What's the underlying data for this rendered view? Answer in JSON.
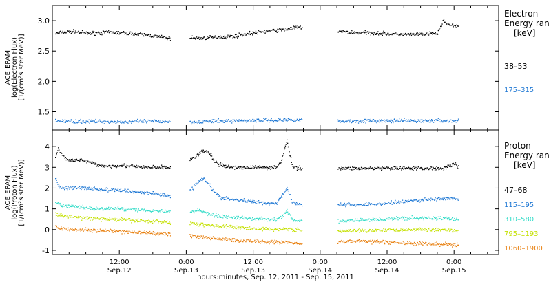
{
  "chart_data": [
    {
      "type": "scatter",
      "ylabel": [
        "ACE EPAM",
        "log(Electron Flux)",
        "[1/(cm²s ster MeV)]"
      ],
      "ylim": [
        1.2,
        3.25
      ],
      "y_ticks": [
        1.5,
        2.0,
        2.5,
        3.0
      ],
      "y_tick_labels": [
        "1.5",
        "2.0",
        "2.5",
        "3.0"
      ],
      "xlim_hours": [
        0,
        80
      ],
      "legend_title": [
        "Electron",
        "Energy ran",
        "[keV]"
      ],
      "gaps_hours": [
        [
          21.2,
          24.6
        ],
        [
          44.8,
          51.1
        ],
        [
          72.8,
          80
        ]
      ],
      "series": [
        {
          "name": "38–53",
          "color": "#000000",
          "values": [
            [
              0.5,
              2.79
            ],
            [
              2,
              2.81
            ],
            [
              4,
              2.82
            ],
            [
              6,
              2.79
            ],
            [
              8,
              2.8
            ],
            [
              10,
              2.81
            ],
            [
              12,
              2.8
            ],
            [
              14,
              2.79
            ],
            [
              16,
              2.77
            ],
            [
              18,
              2.75
            ],
            [
              20,
              2.72
            ],
            [
              21,
              2.71
            ],
            [
              24.8,
              2.72
            ],
            [
              26,
              2.71
            ],
            [
              28,
              2.72
            ],
            [
              30,
              2.73
            ],
            [
              32,
              2.74
            ],
            [
              34,
              2.77
            ],
            [
              36,
              2.8
            ],
            [
              38,
              2.82
            ],
            [
              40,
              2.84
            ],
            [
              42,
              2.86
            ],
            [
              43,
              2.88
            ],
            [
              44.5,
              2.89
            ],
            [
              51.3,
              2.82
            ],
            [
              53,
              2.81
            ],
            [
              55,
              2.8
            ],
            [
              57,
              2.8
            ],
            [
              59,
              2.79
            ],
            [
              61,
              2.78
            ],
            [
              63,
              2.77
            ],
            [
              65,
              2.77
            ],
            [
              67,
              2.78
            ],
            [
              69,
              2.79
            ],
            [
              70,
              3.0
            ],
            [
              71,
              2.93
            ],
            [
              72.6,
              2.9
            ]
          ]
        },
        {
          "name": "175–315",
          "color": "#1f78d4",
          "values": [
            [
              0.5,
              1.35
            ],
            [
              4,
              1.34
            ],
            [
              8,
              1.34
            ],
            [
              12,
              1.33
            ],
            [
              16,
              1.34
            ],
            [
              20,
              1.34
            ],
            [
              21,
              1.34
            ],
            [
              24.8,
              1.33
            ],
            [
              28,
              1.34
            ],
            [
              32,
              1.35
            ],
            [
              36,
              1.36
            ],
            [
              40,
              1.36
            ],
            [
              44.5,
              1.37
            ],
            [
              51.3,
              1.34
            ],
            [
              55,
              1.35
            ],
            [
              59,
              1.35
            ],
            [
              63,
              1.35
            ],
            [
              67,
              1.35
            ],
            [
              72.6,
              1.35
            ]
          ]
        }
      ]
    },
    {
      "type": "scatter",
      "ylabel": [
        "ACE EPAM",
        "log(Proton Flux)",
        "[1/(cm²s ster MeV)]"
      ],
      "ylim": [
        -1.2,
        4.8
      ],
      "y_ticks": [
        -1,
        0,
        1,
        2,
        3,
        4
      ],
      "y_tick_labels": [
        "-1",
        "0",
        "1",
        "2",
        "3",
        "4"
      ],
      "xlim_hours": [
        0,
        80
      ],
      "legend_title": [
        "Proton",
        "Energy ran",
        "[keV]"
      ],
      "gaps_hours": [
        [
          21.2,
          24.6
        ],
        [
          44.8,
          51.1
        ],
        [
          72.8,
          80
        ]
      ],
      "series": [
        {
          "name": "47–68",
          "color": "#000000",
          "values": [
            [
              0.5,
              3.5
            ],
            [
              1,
              3.9
            ],
            [
              2,
              3.5
            ],
            [
              3,
              3.3
            ],
            [
              4,
              3.4
            ],
            [
              6,
              3.3
            ],
            [
              8,
              3.1
            ],
            [
              10,
              3.05
            ],
            [
              12,
              3.1
            ],
            [
              14,
              3.05
            ],
            [
              16,
              3.0
            ],
            [
              18,
              3.0
            ],
            [
              20,
              3.0
            ],
            [
              21,
              2.98
            ],
            [
              24.8,
              3.4
            ],
            [
              26,
              3.6
            ],
            [
              27,
              3.8
            ],
            [
              28,
              3.7
            ],
            [
              29,
              3.3
            ],
            [
              30,
              3.1
            ],
            [
              32,
              3.0
            ],
            [
              34,
              3.0
            ],
            [
              36,
              3.0
            ],
            [
              38,
              3.0
            ],
            [
              40,
              3.0
            ],
            [
              41,
              3.3
            ],
            [
              42,
              4.3
            ],
            [
              43,
              3.0
            ],
            [
              44.5,
              2.98
            ],
            [
              51.3,
              2.95
            ],
            [
              55,
              2.95
            ],
            [
              59,
              2.95
            ],
            [
              63,
              2.95
            ],
            [
              67,
              2.95
            ],
            [
              70,
              2.95
            ],
            [
              72,
              3.2
            ],
            [
              72.6,
              3.0
            ]
          ]
        },
        {
          "name": "115–195",
          "color": "#1f78d4",
          "values": [
            [
              0.5,
              2.5
            ],
            [
              1,
              2.1
            ],
            [
              2,
              2.0
            ],
            [
              4,
              2.0
            ],
            [
              6,
              2.0
            ],
            [
              8,
              1.95
            ],
            [
              10,
              1.9
            ],
            [
              12,
              1.9
            ],
            [
              14,
              1.85
            ],
            [
              16,
              1.8
            ],
            [
              18,
              1.75
            ],
            [
              20,
              1.68
            ],
            [
              21,
              1.62
            ],
            [
              24.8,
              1.9
            ],
            [
              26,
              2.3
            ],
            [
              27,
              2.5
            ],
            [
              28,
              2.2
            ],
            [
              29,
              1.8
            ],
            [
              30,
              1.55
            ],
            [
              32,
              1.45
            ],
            [
              34,
              1.4
            ],
            [
              36,
              1.35
            ],
            [
              38,
              1.3
            ],
            [
              40,
              1.25
            ],
            [
              41,
              1.6
            ],
            [
              42,
              2.0
            ],
            [
              43,
              1.3
            ],
            [
              44.5,
              1.22
            ],
            [
              51.3,
              1.2
            ],
            [
              55,
              1.2
            ],
            [
              59,
              1.25
            ],
            [
              63,
              1.35
            ],
            [
              67,
              1.45
            ],
            [
              70,
              1.5
            ],
            [
              72.6,
              1.45
            ]
          ]
        },
        {
          "name": "310–580",
          "color": "#34dcc8",
          "values": [
            [
              0.5,
              1.25
            ],
            [
              2,
              1.15
            ],
            [
              4,
              1.1
            ],
            [
              6,
              1.05
            ],
            [
              8,
              1.0
            ],
            [
              10,
              1.0
            ],
            [
              12,
              1.0
            ],
            [
              14,
              0.98
            ],
            [
              16,
              0.95
            ],
            [
              18,
              0.92
            ],
            [
              20,
              0.88
            ],
            [
              21,
              0.85
            ],
            [
              24.8,
              0.85
            ],
            [
              26,
              0.95
            ],
            [
              28,
              0.75
            ],
            [
              30,
              0.65
            ],
            [
              32,
              0.6
            ],
            [
              34,
              0.55
            ],
            [
              36,
              0.52
            ],
            [
              38,
              0.5
            ],
            [
              40,
              0.48
            ],
            [
              41,
              0.6
            ],
            [
              42,
              0.9
            ],
            [
              43,
              0.45
            ],
            [
              44.5,
              0.42
            ],
            [
              51.3,
              0.4
            ],
            [
              55,
              0.45
            ],
            [
              59,
              0.5
            ],
            [
              63,
              0.55
            ],
            [
              67,
              0.55
            ],
            [
              70,
              0.55
            ],
            [
              72.6,
              0.5
            ]
          ]
        },
        {
          "name": "795–1193",
          "color": "#c4e000",
          "values": [
            [
              0.5,
              0.72
            ],
            [
              4,
              0.6
            ],
            [
              8,
              0.52
            ],
            [
              12,
              0.48
            ],
            [
              16,
              0.42
            ],
            [
              20,
              0.38
            ],
            [
              21,
              0.33
            ],
            [
              24.8,
              0.3
            ],
            [
              28,
              0.22
            ],
            [
              32,
              0.12
            ],
            [
              36,
              0.05
            ],
            [
              40,
              0.0
            ],
            [
              42,
              0.05
            ],
            [
              44.5,
              -0.05
            ],
            [
              51.3,
              -0.08
            ],
            [
              55,
              -0.05
            ],
            [
              59,
              -0.02
            ],
            [
              63,
              0.0
            ],
            [
              67,
              0.0
            ],
            [
              70,
              0.0
            ],
            [
              72.6,
              -0.05
            ]
          ]
        },
        {
          "name": "1060–1900",
          "color": "#e88010",
          "values": [
            [
              0.5,
              0.1
            ],
            [
              4,
              0.0
            ],
            [
              8,
              -0.05
            ],
            [
              12,
              -0.1
            ],
            [
              16,
              -0.15
            ],
            [
              20,
              -0.2
            ],
            [
              21,
              -0.22
            ],
            [
              24.8,
              -0.3
            ],
            [
              28,
              -0.4
            ],
            [
              32,
              -0.5
            ],
            [
              36,
              -0.55
            ],
            [
              40,
              -0.6
            ],
            [
              44.5,
              -0.65
            ],
            [
              51.3,
              -0.6
            ],
            [
              55,
              -0.55
            ],
            [
              59,
              -0.6
            ],
            [
              63,
              -0.65
            ],
            [
              67,
              -0.7
            ],
            [
              70,
              -0.7
            ],
            [
              72.6,
              -0.75
            ]
          ]
        }
      ]
    }
  ],
  "x_axis": {
    "ticks": [
      {
        "hours": 12,
        "time": "12:00",
        "date": "Sep.12"
      },
      {
        "hours": 24,
        "time": "0:00",
        "date": "Sep.13"
      },
      {
        "hours": 36,
        "time": "12:00",
        "date": "Sep.13"
      },
      {
        "hours": 48,
        "time": "0:00",
        "date": "Sep.14"
      },
      {
        "hours": 60,
        "time": "12:00",
        "date": "Sep.14"
      },
      {
        "hours": 72,
        "time": "0:00",
        "date": "Sep.15"
      }
    ],
    "label": "hours:minutes, Sep. 12, 2011 - Sep. 15, 2011"
  }
}
